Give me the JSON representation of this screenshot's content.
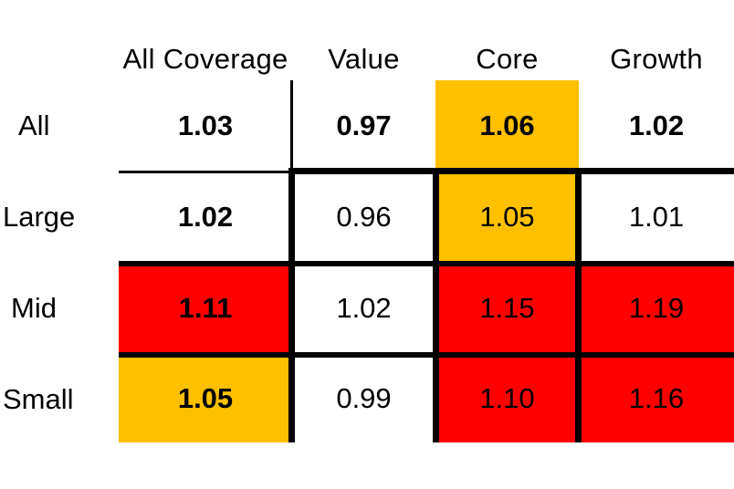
{
  "chart_data": {
    "type": "heatmap",
    "columns": [
      "All Coverage",
      "Value",
      "Core",
      "Growth"
    ],
    "rows": [
      "All",
      "Large",
      "Mid",
      "Small"
    ],
    "values": [
      [
        "1.03",
        "0.97",
        "1.06",
        "1.02"
      ],
      [
        "1.02",
        "0.96",
        "1.05",
        "1.01"
      ],
      [
        "1.11",
        "1.02",
        "1.15",
        "1.19"
      ],
      [
        "1.05",
        "0.99",
        "1.10",
        "1.16"
      ]
    ],
    "colors": {
      "red": "#ff0000",
      "amber": "#ffc000",
      "white": "#ffffff"
    },
    "cell_colors": [
      [
        "white",
        "white",
        "amber",
        "white"
      ],
      [
        "white",
        "white",
        "amber",
        "white"
      ],
      [
        "red",
        "white",
        "red",
        "red"
      ],
      [
        "amber",
        "white",
        "red",
        "red"
      ]
    ],
    "bold": [
      [
        true,
        true,
        true,
        true
      ],
      [
        true,
        false,
        false,
        false
      ],
      [
        true,
        false,
        false,
        false
      ],
      [
        true,
        false,
        false,
        false
      ]
    ]
  }
}
